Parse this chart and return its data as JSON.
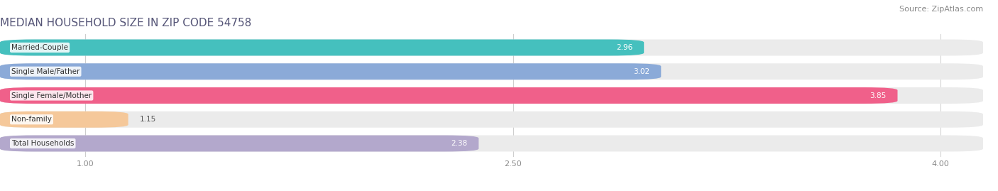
{
  "title": "MEDIAN HOUSEHOLD SIZE IN ZIP CODE 54758",
  "source": "Source: ZipAtlas.com",
  "categories": [
    "Married-Couple",
    "Single Male/Father",
    "Single Female/Mother",
    "Non-family",
    "Total Households"
  ],
  "values": [
    2.96,
    3.02,
    3.85,
    1.15,
    2.38
  ],
  "bar_colors": [
    "#45c0be",
    "#8baad8",
    "#f0608a",
    "#f5c89a",
    "#b3a8cc"
  ],
  "xlim_min": 0.7,
  "xlim_max": 4.15,
  "xticks": [
    1.0,
    2.5,
    4.0
  ],
  "xtick_labels": [
    "1.00",
    "2.50",
    "4.00"
  ],
  "background_color": "#ffffff",
  "bar_bg_color": "#ebebeb",
  "title_fontsize": 11,
  "source_fontsize": 8,
  "label_fontsize": 7.5,
  "value_fontsize": 7.5,
  "value_inside_color": "#ffffff",
  "value_outside_color": "#555555"
}
